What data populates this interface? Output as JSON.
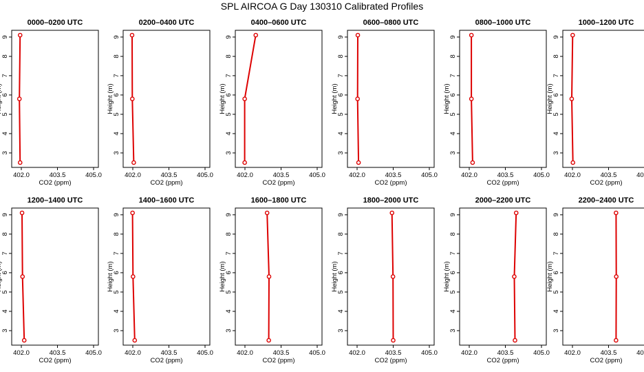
{
  "title": "SPL AIRCOA G  Day 130310  Calibrated Profiles",
  "colors": {
    "profile": "#dd0000",
    "axis": "#000000",
    "background": "#ffffff"
  },
  "chart_data": {
    "type": "line",
    "xlabel": "CO2 (ppm)",
    "ylabel": "Height (m)",
    "xlim": [
      401.6,
      405.2
    ],
    "ylim": [
      2.25,
      9.35
    ],
    "x_ticks": [
      "402.0",
      "403.5",
      "405.0"
    ],
    "x_tick_values": [
      402.0,
      403.5,
      405.0
    ],
    "y_ticks": [
      "3",
      "4",
      "5",
      "6",
      "7",
      "8",
      "9"
    ],
    "y_tick_values": [
      3,
      4,
      5,
      6,
      7,
      8,
      9
    ],
    "heights": [
      2.5,
      5.8,
      9.1
    ],
    "panels": [
      {
        "title": "0000–0200 UTC",
        "co2": [
          401.95,
          401.92,
          401.95
        ]
      },
      {
        "title": "0200–0400 UTC",
        "co2": [
          402.04,
          401.98,
          401.97
        ]
      },
      {
        "title": "0400–0600 UTC",
        "co2": [
          401.99,
          401.99,
          402.45
        ]
      },
      {
        "title": "0600–0800 UTC",
        "co2": [
          402.06,
          402.02,
          402.03
        ]
      },
      {
        "title": "0800–1000 UTC",
        "co2": [
          402.14,
          402.09,
          402.09
        ]
      },
      {
        "title": "1000–1200 UTC",
        "co2": [
          402.02,
          401.97,
          402.01
        ]
      },
      {
        "title": "1200–1400 UTC",
        "co2": [
          402.12,
          402.05,
          402.03
        ]
      },
      {
        "title": "1400–1600 UTC",
        "co2": [
          402.08,
          402.01,
          401.99
        ]
      },
      {
        "title": "1600–1800 UTC",
        "co2": [
          402.99,
          403.0,
          402.92
        ]
      },
      {
        "title": "1800–2000 UTC",
        "co2": [
          403.5,
          403.49,
          403.45
        ]
      },
      {
        "title": "2000–2200 UTC",
        "co2": [
          403.9,
          403.87,
          403.95
        ]
      },
      {
        "title": "2200–2400 UTC",
        "co2": [
          403.81,
          403.82,
          403.81
        ]
      }
    ]
  }
}
